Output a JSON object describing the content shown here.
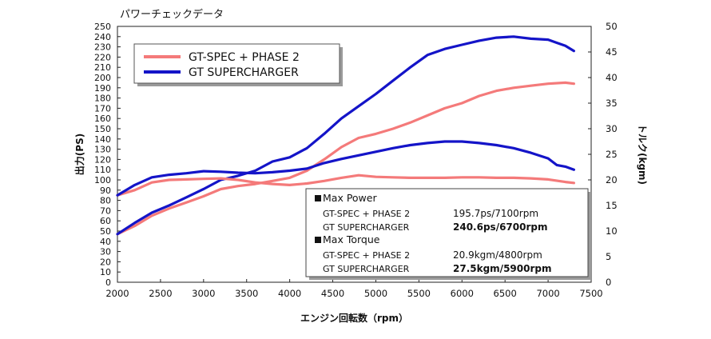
{
  "chart_data": {
    "type": "line",
    "title": "パワーチェックデータ",
    "xlabel": "エンジン回転数（rpm）",
    "ylabel_left": "出力(PS)",
    "ylabel_right": "トルク(kgm)",
    "xlim": [
      2000,
      7500
    ],
    "ylim_left": [
      0,
      250
    ],
    "ylim_right": [
      0,
      50
    ],
    "x_ticks": [
      2000,
      2500,
      3000,
      3500,
      4000,
      4500,
      5000,
      5500,
      6000,
      6500,
      7000,
      7500
    ],
    "y_left_ticks": [
      0,
      10,
      20,
      30,
      40,
      50,
      60,
      70,
      80,
      90,
      100,
      110,
      120,
      130,
      140,
      150,
      160,
      170,
      180,
      190,
      200,
      210,
      220,
      230,
      240,
      250
    ],
    "y_right_ticks": [
      0,
      5,
      10,
      15,
      20,
      25,
      30,
      35,
      40,
      45,
      50
    ],
    "grid": false,
    "legend": {
      "placement": "top-left",
      "entries": [
        {
          "name": "GT-SPEC + PHASE 2",
          "color": "#f47a7a"
        },
        {
          "name": "GT SUPERCHARGER",
          "color": "#1414c8"
        }
      ]
    },
    "series": [
      {
        "name": "GT-SPEC + PHASE 2",
        "kind": "power",
        "axis": "left",
        "color": "#f47a7a",
        "x": [
          2000,
          2200,
          2400,
          2600,
          2800,
          3000,
          3200,
          3400,
          3600,
          3800,
          4000,
          4200,
          4400,
          4600,
          4800,
          5000,
          5200,
          5400,
          5600,
          5800,
          6000,
          6200,
          6400,
          6600,
          6800,
          7000,
          7200,
          7300
        ],
        "y": [
          47,
          55,
          65,
          72,
          78,
          84,
          91,
          94,
          96,
          99,
          102,
          109,
          120,
          132,
          141,
          145,
          150,
          156,
          163,
          170,
          175,
          182,
          187,
          190,
          192,
          194,
          195,
          194
        ]
      },
      {
        "name": "GT SUPERCHARGER",
        "kind": "power",
        "axis": "left",
        "color": "#1414c8",
        "x": [
          2000,
          2200,
          2400,
          2600,
          2800,
          3000,
          3200,
          3400,
          3600,
          3800,
          4000,
          4200,
          4400,
          4600,
          4800,
          5000,
          5200,
          5400,
          5600,
          5800,
          6000,
          6200,
          6400,
          6600,
          6800,
          7000,
          7100,
          7200,
          7300
        ],
        "y": [
          47,
          58,
          68,
          75,
          83,
          91,
          100,
          104,
          109,
          118,
          122,
          131,
          145,
          160,
          172,
          184,
          197,
          210,
          222,
          228,
          232,
          236,
          239,
          240,
          238,
          237,
          234,
          231,
          226
        ]
      },
      {
        "name": "GT-SPEC + PHASE 2",
        "kind": "torque",
        "axis": "right",
        "color": "#f47a7a",
        "x": [
          2000,
          2200,
          2400,
          2600,
          2800,
          3000,
          3200,
          3400,
          3600,
          3800,
          4000,
          4200,
          4400,
          4600,
          4800,
          5000,
          5200,
          5400,
          5600,
          5800,
          6000,
          6200,
          6400,
          6600,
          6800,
          7000,
          7200,
          7300
        ],
        "y": [
          17,
          18,
          19.5,
          20,
          20.1,
          20.2,
          20.3,
          20,
          19.5,
          19.2,
          19,
          19.3,
          19.8,
          20.4,
          20.9,
          20.6,
          20.5,
          20.4,
          20.4,
          20.4,
          20.5,
          20.5,
          20.4,
          20.4,
          20.3,
          20.1,
          19.6,
          19.4
        ]
      },
      {
        "name": "GT SUPERCHARGER",
        "kind": "torque",
        "axis": "right",
        "color": "#1414c8",
        "x": [
          2000,
          2200,
          2400,
          2600,
          2800,
          3000,
          3200,
          3400,
          3600,
          3800,
          4000,
          4200,
          4400,
          4600,
          4800,
          5000,
          5200,
          5400,
          5600,
          5800,
          6000,
          6200,
          6400,
          6600,
          6800,
          7000,
          7100,
          7200,
          7300
        ],
        "y": [
          17,
          19,
          20.5,
          21,
          21.3,
          21.7,
          21.6,
          21.4,
          21.3,
          21.5,
          21.8,
          22.2,
          23.3,
          24.1,
          24.8,
          25.5,
          26.2,
          26.8,
          27.2,
          27.5,
          27.5,
          27.2,
          26.8,
          26.2,
          25.3,
          24.2,
          22.9,
          22.6,
          22
        ]
      }
    ],
    "summary_box": {
      "max_power_heading": "Max Power",
      "max_torque_heading": "Max Torque",
      "power_rows": [
        {
          "label": "GT-SPEC + PHASE 2",
          "value": "195.7ps/7100rpm",
          "bold": false
        },
        {
          "label": "GT SUPERCHARGER",
          "value": "240.6ps/6700rpm",
          "bold": true
        }
      ],
      "torque_rows": [
        {
          "label": "GT-SPEC + PHASE 2",
          "value": "20.9kgm/4800rpm",
          "bold": false
        },
        {
          "label": "GT SUPERCHARGER",
          "value": "27.5kgm/5900rpm",
          "bold": true
        }
      ]
    }
  }
}
